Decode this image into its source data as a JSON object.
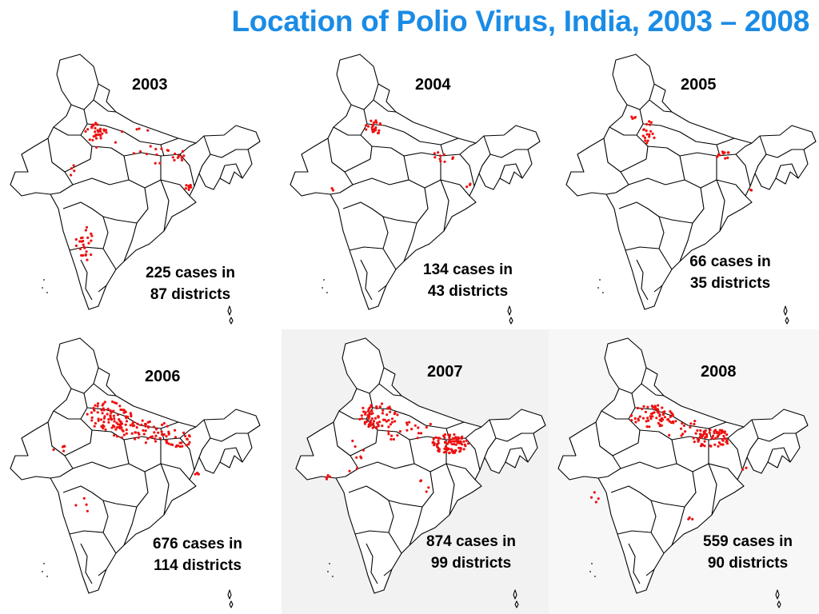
{
  "title": "Location of Polio Virus, India, 2003 – 2008",
  "colors": {
    "title": "#1a8ce6",
    "case_dot": "#ee1111",
    "outline": "#000000"
  },
  "panels": [
    {
      "year": "2003",
      "line1": "225 cases in",
      "line2": "87 districts"
    },
    {
      "year": "2004",
      "line1": "134 cases in",
      "line2": "43 districts"
    },
    {
      "year": "2005",
      "line1": "66 cases in",
      "line2": "35 districts"
    },
    {
      "year": "2006",
      "line1": "676 cases in",
      "line2": "114 districts"
    },
    {
      "year": "2007",
      "line1": "874 cases in",
      "line2": "99 districts"
    },
    {
      "year": "2008",
      "line1": "559 cases in",
      "line2": "90 districts"
    }
  ]
}
